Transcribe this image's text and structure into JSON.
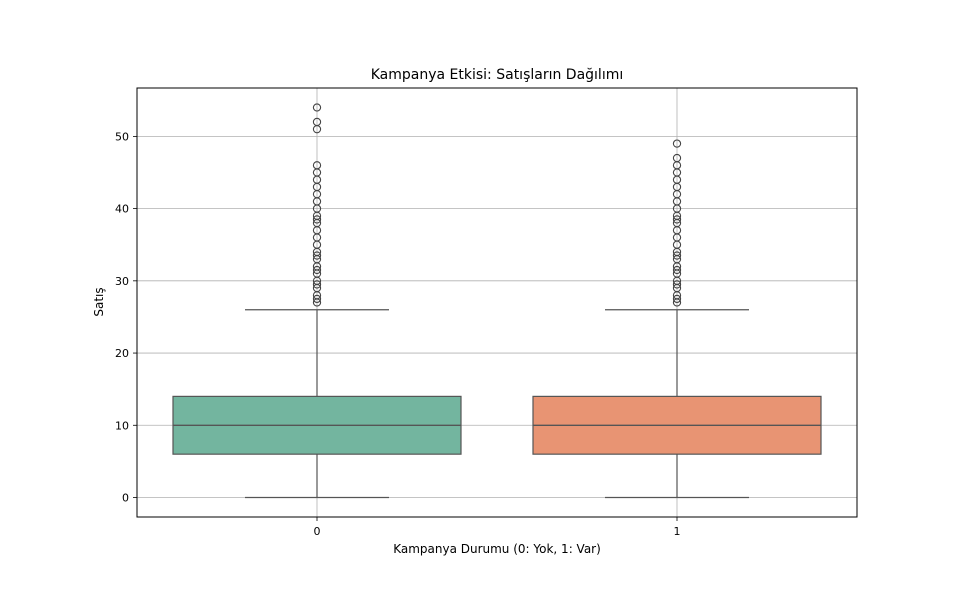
{
  "chart_data": {
    "type": "box",
    "title": "Kampanya Etkisi: Satışların Dağılımı",
    "xlabel": "Kampanya Durumu (0: Yok, 1: Var)",
    "ylabel": "Satış",
    "categories": [
      "0",
      "1"
    ],
    "ylim": [
      -2.7,
      56.7
    ],
    "yticks": [
      0,
      10,
      20,
      30,
      40,
      50
    ],
    "grid": true,
    "colors": [
      "#73b59f",
      "#e89473"
    ],
    "boxes": [
      {
        "category": "0",
        "whisker_low": 0,
        "q1": 6,
        "median": 10,
        "q3": 14,
        "whisker_high": 26,
        "outliers": [
          27,
          27.5,
          28,
          29,
          29.5,
          30,
          31,
          31.5,
          32,
          33,
          33.5,
          34,
          35,
          36,
          37,
          38,
          38.5,
          39,
          40,
          41,
          42,
          43,
          44,
          45,
          46,
          51,
          52,
          54
        ]
      },
      {
        "category": "1",
        "whisker_low": 0,
        "q1": 6,
        "median": 10,
        "q3": 14,
        "whisker_high": 26,
        "outliers": [
          27,
          27.5,
          28,
          29,
          29.5,
          30,
          31,
          31.5,
          32,
          33,
          33.5,
          34,
          35,
          36,
          37,
          38,
          38.5,
          39,
          40,
          41,
          42,
          43,
          44,
          45,
          46,
          47,
          49
        ]
      }
    ]
  }
}
